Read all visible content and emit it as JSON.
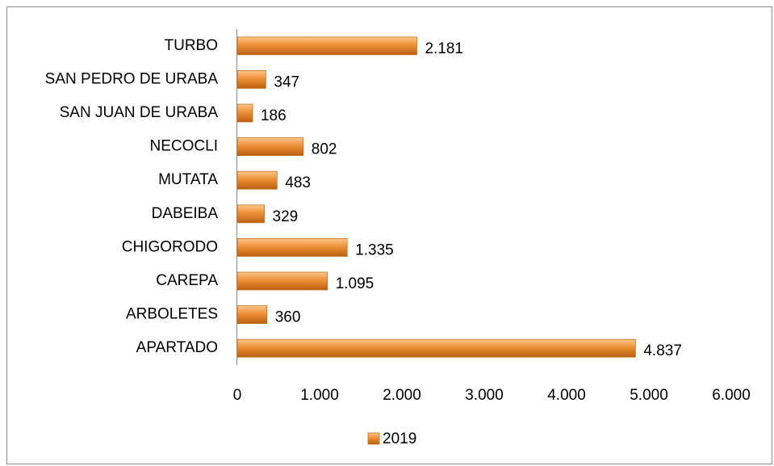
{
  "chart_data": {
    "type": "hbar",
    "categories": [
      "TURBO",
      "SAN PEDRO DE URABA",
      "SAN JUAN DE URABA",
      "NECOCLI",
      "MUTATA",
      "DABEIBA",
      "CHIGORODO",
      "CAREPA",
      "ARBOLETES",
      "APARTADO"
    ],
    "series": [
      {
        "name": "2019",
        "color": "#ea8a2e",
        "values": [
          2181,
          347,
          186,
          802,
          483,
          329,
          1335,
          1095,
          360,
          4837
        ],
        "value_labels": [
          "2.181",
          "347",
          "186",
          "802",
          "483",
          "329",
          "1.335",
          "1.095",
          "360",
          "4.837"
        ]
      }
    ],
    "xlim": [
      0,
      6000
    ],
    "xticks": [
      0,
      {
        "value": 1000,
        "label": "1.000"
      },
      {
        "value": 2000,
        "label": "2.000"
      },
      {
        "value": 3000,
        "label": "3.000"
      },
      {
        "value": 4000,
        "label": "4.000"
      },
      {
        "value": 5000,
        "label": "5.000"
      },
      {
        "value": 6000,
        "label": "6.000"
      }
    ],
    "grid": false,
    "legend": "bottom"
  }
}
